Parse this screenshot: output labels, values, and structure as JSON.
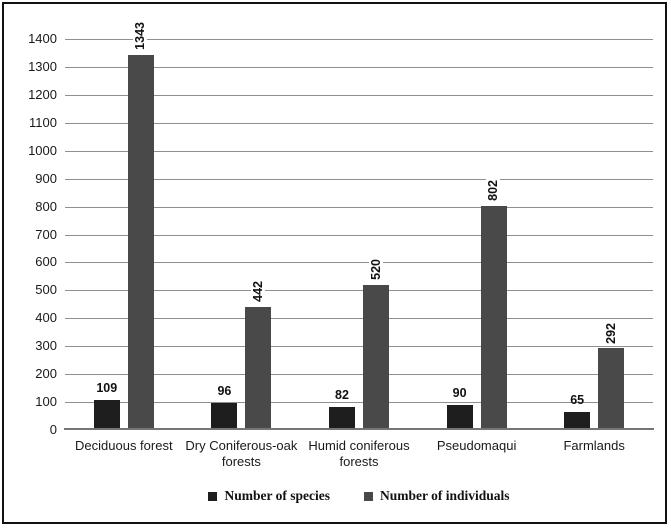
{
  "chart_data": {
    "type": "bar",
    "title": "",
    "categories": [
      "Deciduous forest",
      "Dry Coniferous-oak forests",
      "Humid coniferous forests",
      "Pseudomaqui",
      "Farmlands"
    ],
    "series": [
      {
        "name": "Number of species",
        "color": "#1e1e1e",
        "values": [
          109,
          96,
          82,
          90,
          65
        ],
        "value_label_rotation": 0
      },
      {
        "name": "Number of individuals",
        "color": "#494949",
        "values": [
          1343,
          442,
          520,
          802,
          292
        ],
        "value_label_rotation": -90
      }
    ],
    "xlabel": "",
    "ylabel": "",
    "ylim": [
      0,
      1400
    ],
    "ytick_step": 100,
    "grid": "horizontal",
    "gridline_color": "#8f8f8f",
    "axis_line_color": "#757575",
    "legend_position": "bottom"
  }
}
